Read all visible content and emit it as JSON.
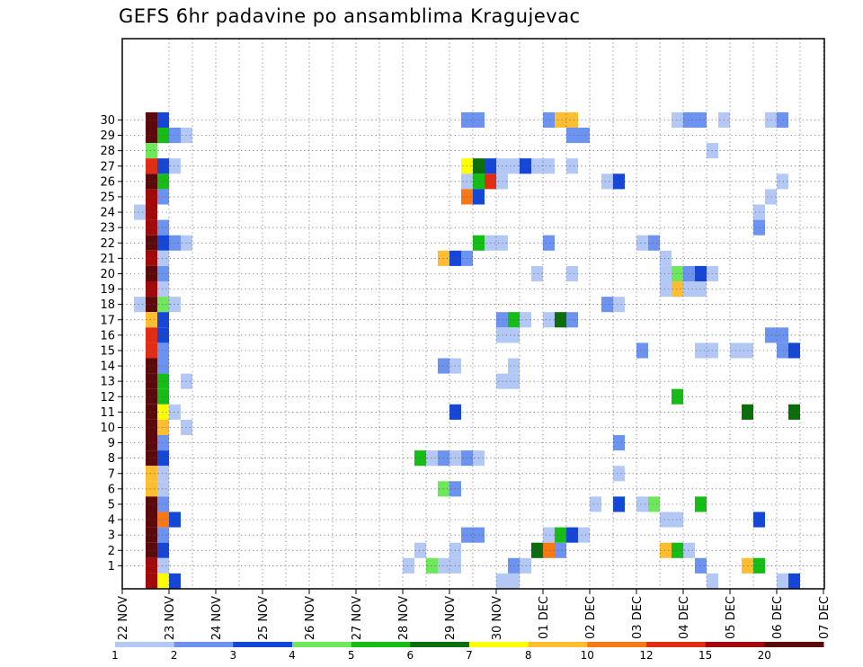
{
  "chart_data": {
    "type": "heatmap",
    "title": "GEFS 6hr padavine po ansamblima Kragujevac",
    "x_start_date": "2017-11-22",
    "x_step_hours": 6,
    "x_tick_labels": [
      "22 NOV",
      "23 NOV",
      "24 NOV",
      "25 NOV",
      "26 NOV",
      "27 NOV",
      "28 NOV",
      "29 NOV",
      "30 NOV",
      "01 DEC",
      "02 DEC",
      "03 DEC",
      "04 DEC",
      "05 DEC",
      "06 DEC",
      "07 DEC"
    ],
    "y_tick_labels": [
      "1",
      "2",
      "3",
      "4",
      "5",
      "6",
      "7",
      "8",
      "9",
      "10",
      "11",
      "12",
      "13",
      "14",
      "15",
      "16",
      "17",
      "18",
      "19",
      "20",
      "21",
      "22",
      "23",
      "24",
      "25",
      "26",
      "27",
      "28",
      "29",
      "30"
    ],
    "color_scale": {
      "boundaries": [
        "1",
        "2",
        "3",
        "4",
        "5",
        "6",
        "7",
        "8",
        "10",
        "12",
        "15",
        "20"
      ],
      "colors": [
        "#b4c8f5",
        "#6b93ef",
        "#1446d8",
        "#6ee85a",
        "#14be14",
        "#0a6e0a",
        "#ffff00",
        "#ffbe32",
        "#fa7814",
        "#e12d14",
        "#a00a0a",
        "#5a0a0a"
      ]
    },
    "cells": [
      [
        30,
        2,
        11
      ],
      [
        30,
        3,
        2
      ],
      [
        29,
        2,
        11
      ],
      [
        29,
        3,
        4
      ],
      [
        29,
        4,
        1
      ],
      [
        29,
        5,
        0
      ],
      [
        28,
        2,
        3
      ],
      [
        27,
        2,
        9
      ],
      [
        27,
        3,
        2
      ],
      [
        27,
        4,
        0
      ],
      [
        26,
        2,
        11
      ],
      [
        26,
        3,
        4
      ],
      [
        25,
        2,
        10
      ],
      [
        25,
        3,
        1
      ],
      [
        24,
        1,
        0
      ],
      [
        24,
        2,
        10
      ],
      [
        23,
        2,
        10
      ],
      [
        23,
        3,
        1
      ],
      [
        22,
        2,
        11
      ],
      [
        22,
        3,
        2
      ],
      [
        22,
        4,
        1
      ],
      [
        22,
        5,
        0
      ],
      [
        21,
        2,
        10
      ],
      [
        21,
        3,
        0
      ],
      [
        20,
        2,
        11
      ],
      [
        20,
        3,
        1
      ],
      [
        19,
        2,
        10
      ],
      [
        19,
        3,
        0
      ],
      [
        18,
        1,
        0
      ],
      [
        18,
        2,
        11
      ],
      [
        18,
        3,
        3
      ],
      [
        18,
        4,
        0
      ],
      [
        17,
        2,
        7
      ],
      [
        17,
        3,
        2
      ],
      [
        16,
        2,
        9
      ],
      [
        16,
        3,
        2
      ],
      [
        15,
        2,
        9
      ],
      [
        15,
        3,
        1
      ],
      [
        14,
        2,
        11
      ],
      [
        14,
        3,
        1
      ],
      [
        13,
        2,
        11
      ],
      [
        13,
        3,
        4
      ],
      [
        13,
        5,
        0
      ],
      [
        12,
        2,
        11
      ],
      [
        12,
        3,
        4
      ],
      [
        11,
        2,
        11
      ],
      [
        11,
        3,
        6
      ],
      [
        11,
        4,
        0
      ],
      [
        10,
        2,
        11
      ],
      [
        10,
        3,
        7
      ],
      [
        10,
        5,
        0
      ],
      [
        9,
        2,
        11
      ],
      [
        9,
        3,
        1
      ],
      [
        8,
        2,
        11
      ],
      [
        8,
        3,
        2
      ],
      [
        7,
        2,
        7
      ],
      [
        7,
        3,
        0
      ],
      [
        6,
        2,
        7
      ],
      [
        6,
        3,
        0
      ],
      [
        5,
        2,
        11
      ],
      [
        5,
        3,
        1
      ],
      [
        4,
        2,
        11
      ],
      [
        4,
        3,
        8
      ],
      [
        4,
        4,
        2
      ],
      [
        3,
        2,
        11
      ],
      [
        3,
        3,
        1
      ],
      [
        2,
        2,
        11
      ],
      [
        2,
        3,
        2
      ],
      [
        1,
        2,
        10
      ],
      [
        1,
        3,
        0
      ],
      [
        0,
        2,
        10
      ],
      [
        0,
        3,
        6
      ],
      [
        0,
        4,
        2
      ],
      [
        30,
        29,
        1
      ],
      [
        30,
        30,
        1
      ],
      [
        27,
        29,
        6
      ],
      [
        27,
        30,
        5
      ],
      [
        27,
        31,
        2
      ],
      [
        27,
        32,
        0
      ],
      [
        27,
        33,
        0
      ],
      [
        27,
        34,
        2
      ],
      [
        27,
        35,
        0
      ],
      [
        27,
        36,
        0
      ],
      [
        27,
        38,
        0
      ],
      [
        26,
        29,
        0
      ],
      [
        26,
        30,
        4
      ],
      [
        26,
        31,
        9
      ],
      [
        26,
        32,
        0
      ],
      [
        25,
        29,
        8
      ],
      [
        25,
        30,
        2
      ],
      [
        22,
        30,
        4
      ],
      [
        22,
        31,
        0
      ],
      [
        22,
        32,
        0
      ],
      [
        21,
        27,
        7
      ],
      [
        21,
        28,
        2
      ],
      [
        21,
        29,
        1
      ],
      [
        17,
        32,
        1
      ],
      [
        17,
        33,
        4
      ],
      [
        17,
        34,
        0
      ],
      [
        16,
        32,
        0
      ],
      [
        16,
        33,
        0
      ],
      [
        14,
        27,
        1
      ],
      [
        14,
        28,
        0
      ],
      [
        14,
        33,
        0
      ],
      [
        13,
        32,
        0
      ],
      [
        13,
        33,
        0
      ],
      [
        11,
        28,
        2
      ],
      [
        8,
        25,
        4
      ],
      [
        8,
        26,
        0
      ],
      [
        8,
        27,
        1
      ],
      [
        8,
        28,
        0
      ],
      [
        8,
        29,
        1
      ],
      [
        8,
        30,
        0
      ],
      [
        6,
        27,
        3
      ],
      [
        6,
        28,
        1
      ],
      [
        3,
        29,
        1
      ],
      [
        3,
        30,
        1
      ],
      [
        2,
        25,
        0
      ],
      [
        2,
        28,
        0
      ],
      [
        1,
        24,
        0
      ],
      [
        1,
        26,
        3
      ],
      [
        1,
        27,
        0
      ],
      [
        1,
        28,
        0
      ],
      [
        1,
        33,
        1
      ],
      [
        1,
        34,
        0
      ],
      [
        0,
        32,
        0
      ],
      [
        0,
        33,
        0
      ],
      [
        30,
        36,
        1
      ],
      [
        30,
        37,
        7
      ],
      [
        30,
        38,
        7
      ],
      [
        30,
        47,
        0
      ],
      [
        30,
        48,
        1
      ],
      [
        30,
        49,
        1
      ],
      [
        30,
        51,
        0
      ],
      [
        30,
        55,
        0
      ],
      [
        30,
        56,
        1
      ],
      [
        29,
        38,
        1
      ],
      [
        29,
        39,
        1
      ],
      [
        28,
        50,
        0
      ],
      [
        26,
        41,
        0
      ],
      [
        26,
        42,
        2
      ],
      [
        26,
        56,
        0
      ],
      [
        25,
        55,
        0
      ],
      [
        24,
        54,
        0
      ],
      [
        23,
        54,
        1
      ],
      [
        22,
        36,
        1
      ],
      [
        22,
        44,
        0
      ],
      [
        22,
        45,
        1
      ],
      [
        21,
        46,
        0
      ],
      [
        20,
        35,
        0
      ],
      [
        20,
        38,
        0
      ],
      [
        20,
        46,
        0
      ],
      [
        20,
        47,
        3
      ],
      [
        20,
        48,
        1
      ],
      [
        20,
        49,
        2
      ],
      [
        20,
        50,
        0
      ],
      [
        19,
        46,
        0
      ],
      [
        19,
        47,
        7
      ],
      [
        19,
        48,
        0
      ],
      [
        19,
        49,
        0
      ],
      [
        18,
        41,
        1
      ],
      [
        18,
        42,
        0
      ],
      [
        17,
        36,
        0
      ],
      [
        17,
        37,
        5
      ],
      [
        17,
        38,
        1
      ],
      [
        16,
        55,
        1
      ],
      [
        16,
        56,
        1
      ],
      [
        15,
        44,
        1
      ],
      [
        15,
        49,
        0
      ],
      [
        15,
        50,
        0
      ],
      [
        15,
        52,
        0
      ],
      [
        15,
        53,
        0
      ],
      [
        15,
        56,
        1
      ],
      [
        15,
        57,
        2
      ],
      [
        12,
        47,
        4
      ],
      [
        11,
        53,
        5
      ],
      [
        11,
        57,
        5
      ],
      [
        9,
        42,
        1
      ],
      [
        7,
        42,
        0
      ],
      [
        5,
        40,
        0
      ],
      [
        5,
        42,
        2
      ],
      [
        5,
        44,
        0
      ],
      [
        5,
        45,
        3
      ],
      [
        5,
        49,
        4
      ],
      [
        4,
        46,
        0
      ],
      [
        4,
        47,
        0
      ],
      [
        4,
        54,
        2
      ],
      [
        3,
        36,
        0
      ],
      [
        3,
        37,
        4
      ],
      [
        3,
        38,
        2
      ],
      [
        3,
        39,
        0
      ],
      [
        2,
        35,
        5
      ],
      [
        2,
        36,
        8
      ],
      [
        2,
        37,
        1
      ],
      [
        2,
        46,
        7
      ],
      [
        2,
        47,
        4
      ],
      [
        2,
        48,
        0
      ],
      [
        1,
        49,
        1
      ],
      [
        1,
        53,
        7
      ],
      [
        1,
        54,
        4
      ],
      [
        0,
        50,
        0
      ],
      [
        0,
        56,
        0
      ],
      [
        0,
        57,
        2
      ]
    ]
  }
}
